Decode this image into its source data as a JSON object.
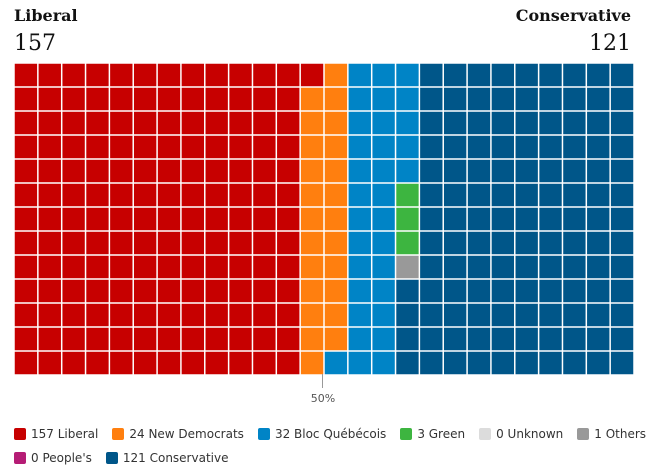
{
  "header": {
    "left_label": "Liberal",
    "left_count": "157",
    "right_label": "Conservative",
    "right_count": "121"
  },
  "chart_data": {
    "type": "waffle",
    "rows": 13,
    "columns": 26,
    "midpoint_label": "50%",
    "parties": [
      {
        "key": "liberal",
        "label": "157 Liberal",
        "seats": 157,
        "color": "#c70000"
      },
      {
        "key": "ndp",
        "label": "24 New Democrats",
        "seats": 24,
        "color": "#ff7f0f"
      },
      {
        "key": "bloc",
        "label": "32 Bloc Québécois",
        "seats": 32,
        "color": "#0084c6"
      },
      {
        "key": "green",
        "label": "3 Green",
        "seats": 3,
        "color": "#3db540"
      },
      {
        "key": "unknown",
        "label": "0 Unknown",
        "seats": 0,
        "color": "#dcdcdc"
      },
      {
        "key": "others",
        "label": "1 Others",
        "seats": 1,
        "color": "#999999"
      },
      {
        "key": "ppc",
        "label": "0 People's",
        "seats": 0,
        "color": "#b51c75"
      },
      {
        "key": "conservative",
        "label": "121 Conservative",
        "seats": 121,
        "color": "#005689"
      }
    ]
  }
}
